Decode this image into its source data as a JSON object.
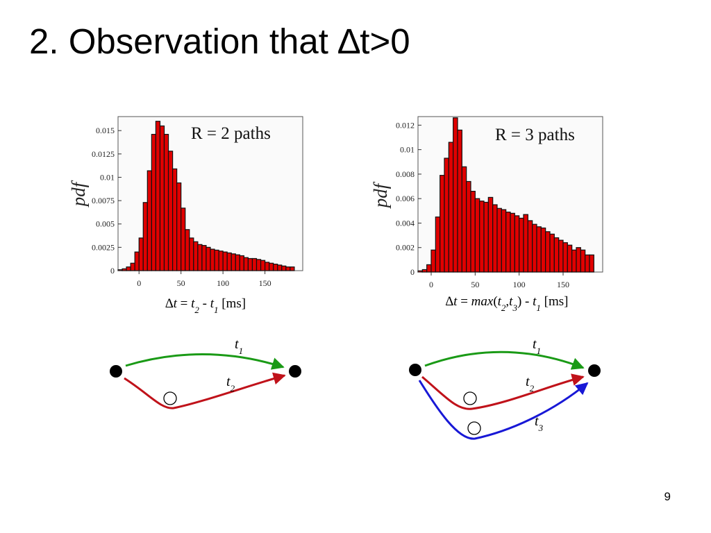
{
  "slide": {
    "title": "2. Observation that ∆t>0",
    "page_number": "9"
  },
  "chart_data": [
    {
      "type": "bar",
      "title": "R = 2 paths",
      "xlabel_parts": [
        "∆",
        "t",
        " = ",
        "t",
        "2",
        " - ",
        "t",
        "1",
        "  [ms]"
      ],
      "ylabel": "pdf",
      "x_ticks": [
        "0",
        "50",
        "100",
        "150"
      ],
      "y_ticks": [
        "0",
        "0.0025",
        "0.005",
        "0.0075",
        "0.01",
        "0.0125",
        "0.015"
      ],
      "xlim": [
        -25,
        195
      ],
      "ylim": [
        0,
        0.0165
      ],
      "bin_width": 5,
      "x_start": -25,
      "values": [
        0.0001,
        0.0002,
        0.0004,
        0.0008,
        0.002,
        0.0035,
        0.0073,
        0.0107,
        0.0146,
        0.016,
        0.0155,
        0.0146,
        0.0128,
        0.0109,
        0.0094,
        0.0067,
        0.0044,
        0.0035,
        0.0031,
        0.0028,
        0.0027,
        0.0025,
        0.0023,
        0.0022,
        0.0021,
        0.002,
        0.0019,
        0.0018,
        0.0017,
        0.0016,
        0.0014,
        0.0013,
        0.0013,
        0.0012,
        0.0011,
        0.0009,
        0.0008,
        0.0007,
        0.0006,
        0.0005,
        0.0004,
        0.0004
      ]
    },
    {
      "type": "bar",
      "title": "R = 3 paths",
      "xlabel_parts": [
        "∆",
        "t",
        " = ",
        "max",
        "(",
        "t",
        "2",
        ",",
        "t",
        "3",
        ") - ",
        "t",
        "1",
        " [ms]"
      ],
      "ylabel": "pdf",
      "x_ticks": [
        "0",
        "50",
        "100",
        "150"
      ],
      "y_ticks": [
        "0",
        "0.002",
        "0.004",
        "0.006",
        "0.008",
        "0.01",
        "0.012"
      ],
      "xlim": [
        -15,
        195
      ],
      "ylim": [
        0,
        0.0127
      ],
      "bin_width": 5,
      "x_start": -15,
      "values": [
        0.0001,
        0.0002,
        0.0006,
        0.0018,
        0.0045,
        0.0079,
        0.0093,
        0.0106,
        0.0126,
        0.0116,
        0.0086,
        0.0074,
        0.0066,
        0.006,
        0.0058,
        0.0057,
        0.0061,
        0.0055,
        0.0052,
        0.0051,
        0.0049,
        0.0048,
        0.0046,
        0.0044,
        0.0047,
        0.0042,
        0.0039,
        0.0037,
        0.0036,
        0.0033,
        0.0031,
        0.0028,
        0.0026,
        0.0024,
        0.0022,
        0.0018,
        0.002,
        0.0018,
        0.0014,
        0.0014
      ]
    }
  ],
  "diagrams": [
    {
      "paths": [
        {
          "label": "t",
          "sub": "1",
          "color": "#1a9a16"
        },
        {
          "label": "t",
          "sub": "2",
          "color": "#c0121a"
        }
      ]
    },
    {
      "paths": [
        {
          "label": "t",
          "sub": "1",
          "color": "#1a9a16"
        },
        {
          "label": "t",
          "sub": "2",
          "color": "#c0121a"
        },
        {
          "label": "t",
          "sub": "3",
          "color": "#1818d6"
        }
      ]
    }
  ],
  "colors": {
    "bar_fill": "#e00000",
    "bar_stroke": "#111111"
  }
}
